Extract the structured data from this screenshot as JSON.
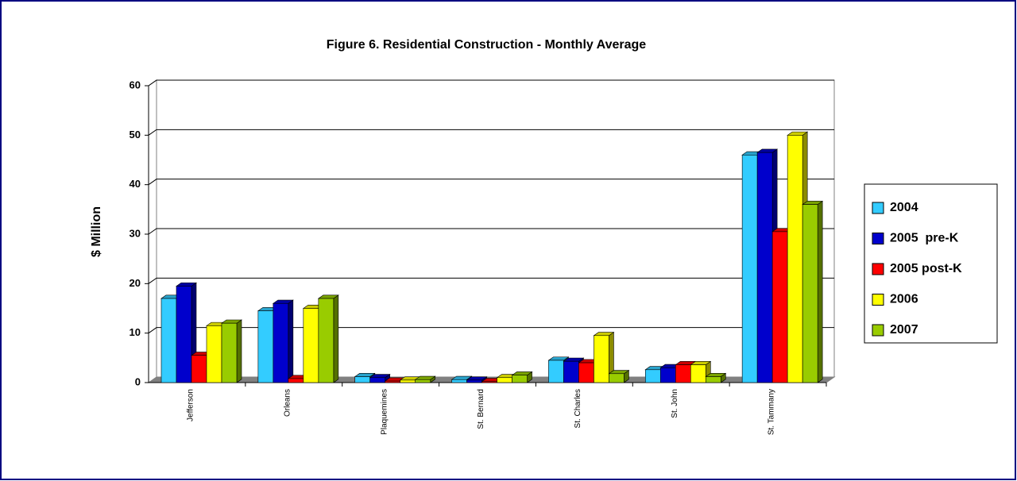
{
  "chart_data": {
    "type": "bar3d",
    "title": "Figure 6. Residential Construction - Monthly Average",
    "y_label": "$ Million",
    "categories": [
      "Jefferson",
      "Orleans",
      "Plaquemines",
      "St. Bernard",
      "St. Charles",
      "St. John",
      "St. Tammany"
    ],
    "series": [
      {
        "name": "2004",
        "color": "#33ccff",
        "values": [
          17,
          14.5,
          1.2,
          0.6,
          4.5,
          2.6,
          46
        ]
      },
      {
        "name": "2005  pre-K",
        "color": "#0000cc",
        "values": [
          19.5,
          16,
          1,
          0.5,
          4.3,
          3,
          46.5
        ]
      },
      {
        "name": "2005 post-K",
        "color": "#ff0000",
        "values": [
          5.5,
          0.8,
          0.3,
          0.2,
          4,
          3.6,
          30.5
        ]
      },
      {
        "name": "2006",
        "color": "#ffff00",
        "values": [
          11.5,
          15,
          0.5,
          1,
          9.5,
          3.6,
          50
        ]
      },
      {
        "name": "2007",
        "color": "#99cc00",
        "values": [
          12,
          17,
          0.6,
          1.5,
          1.8,
          1.2,
          36
        ]
      }
    ],
    "ylim": [
      0,
      60
    ],
    "yticks": [
      0,
      10,
      20,
      30,
      40,
      50,
      60
    ],
    "grid": true,
    "legend": "right"
  }
}
